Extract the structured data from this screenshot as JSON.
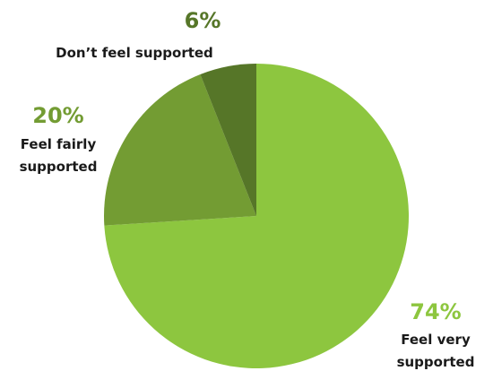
{
  "chart_data": {
    "type": "pie",
    "slices": [
      {
        "value": 74,
        "percent_label": "74%",
        "label_lines": [
          "Feel very",
          "supported"
        ],
        "color": "#8dc63f",
        "label_color": "#8dc63f"
      },
      {
        "value": 20,
        "percent_label": "20%",
        "label_lines": [
          "Feel fairly",
          "supported"
        ],
        "color": "#739c33",
        "label_color": "#739c33"
      },
      {
        "value": 6,
        "percent_label": "6%",
        "label_lines": [
          "Don’t feel supported"
        ],
        "color": "#567628",
        "label_color": "#567628"
      }
    ],
    "start": "12 o'clock",
    "direction": "clockwise",
    "legend": "none"
  }
}
